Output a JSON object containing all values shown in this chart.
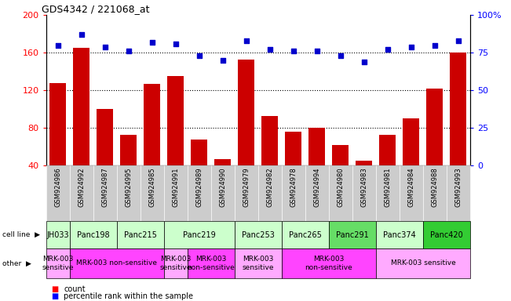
{
  "title": "GDS4342 / 221068_at",
  "samples": [
    "GSM924986",
    "GSM924992",
    "GSM924987",
    "GSM924995",
    "GSM924985",
    "GSM924991",
    "GSM924989",
    "GSM924990",
    "GSM924979",
    "GSM924982",
    "GSM924978",
    "GSM924994",
    "GSM924980",
    "GSM924983",
    "GSM924981",
    "GSM924984",
    "GSM924988",
    "GSM924993"
  ],
  "counts": [
    128,
    165,
    100,
    73,
    127,
    135,
    68,
    47,
    153,
    93,
    76,
    80,
    62,
    45,
    73,
    90,
    122,
    160
  ],
  "percentiles": [
    80,
    87,
    79,
    76,
    82,
    81,
    73,
    70,
    83,
    77,
    76,
    76,
    73,
    69,
    77,
    79,
    80,
    83
  ],
  "cell_lines": [
    {
      "name": "JH033",
      "start": 0,
      "end": 1,
      "color": "#ccffcc"
    },
    {
      "name": "Panc198",
      "start": 1,
      "end": 3,
      "color": "#ccffcc"
    },
    {
      "name": "Panc215",
      "start": 3,
      "end": 5,
      "color": "#ccffcc"
    },
    {
      "name": "Panc219",
      "start": 5,
      "end": 8,
      "color": "#ccffcc"
    },
    {
      "name": "Panc253",
      "start": 8,
      "end": 10,
      "color": "#ccffcc"
    },
    {
      "name": "Panc265",
      "start": 10,
      "end": 12,
      "color": "#ccffcc"
    },
    {
      "name": "Panc291",
      "start": 12,
      "end": 14,
      "color": "#66dd66"
    },
    {
      "name": "Panc374",
      "start": 14,
      "end": 16,
      "color": "#ccffcc"
    },
    {
      "name": "Panc420",
      "start": 16,
      "end": 18,
      "color": "#33cc33"
    }
  ],
  "other_rows": [
    {
      "label": "MRK-003\nsensitive",
      "start": 0,
      "end": 1,
      "color": "#ffaaff"
    },
    {
      "label": "MRK-003 non-sensitive",
      "start": 1,
      "end": 5,
      "color": "#ff44ff"
    },
    {
      "label": "MRK-003\nsensitive",
      "start": 5,
      "end": 6,
      "color": "#ffaaff"
    },
    {
      "label": "MRK-003\nnon-sensitive",
      "start": 6,
      "end": 8,
      "color": "#ff44ff"
    },
    {
      "label": "MRK-003\nsensitive",
      "start": 8,
      "end": 10,
      "color": "#ffaaff"
    },
    {
      "label": "MRK-003\nnon-sensitive",
      "start": 10,
      "end": 14,
      "color": "#ff44ff"
    },
    {
      "label": "MRK-003 sensitive",
      "start": 14,
      "end": 18,
      "color": "#ffaaff"
    }
  ],
  "ylim_left": [
    40,
    200
  ],
  "ylim_right": [
    0,
    100
  ],
  "bar_color": "#cc0000",
  "dot_color": "#0000cc",
  "grid_lines": [
    80,
    120,
    160
  ],
  "tick_bg_color": "#cccccc",
  "left_yticks": [
    40,
    80,
    120,
    160,
    200
  ],
  "right_yticks": [
    0,
    25,
    50,
    75,
    100
  ]
}
